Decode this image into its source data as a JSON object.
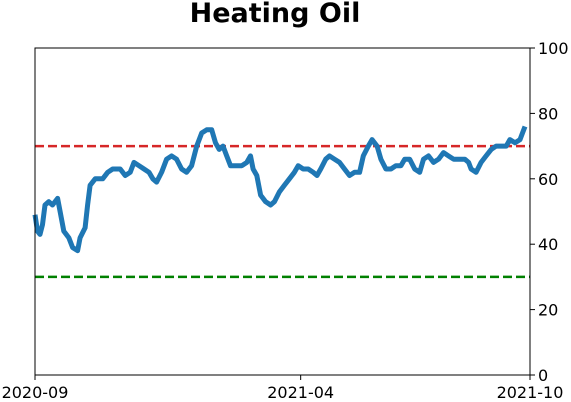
{
  "chart_data": {
    "type": "line",
    "title": "Heating Oil",
    "xlabel": "",
    "ylabel": "",
    "x_range": [
      "2020-09-01",
      "2021-10-01"
    ],
    "x_ticks": [
      {
        "date": "2020-09-01",
        "label": "2020-09"
      },
      {
        "date": "2021-04-01",
        "label": "2021-04"
      },
      {
        "date": "2021-10-01",
        "label": "2021-10"
      }
    ],
    "ylim": [
      0,
      100
    ],
    "y_ticks": [
      0,
      20,
      40,
      60,
      80,
      100
    ],
    "y_axis_side": "right",
    "grid": false,
    "legend": "none",
    "reference_lines": [
      {
        "y": 70,
        "color": "#d62728",
        "style": "dashed"
      },
      {
        "y": 30,
        "color": "#008000",
        "style": "dashed"
      }
    ],
    "series": [
      {
        "color": "#1f77b4",
        "points": [
          [
            "2020-09-01",
            49
          ],
          [
            "2020-09-03",
            44
          ],
          [
            "2020-09-05",
            43
          ],
          [
            "2020-09-07",
            46
          ],
          [
            "2020-09-09",
            52
          ],
          [
            "2020-09-12",
            53
          ],
          [
            "2020-09-15",
            52
          ],
          [
            "2020-09-19",
            54
          ],
          [
            "2020-09-21",
            50
          ],
          [
            "2020-09-24",
            44
          ],
          [
            "2020-09-28",
            42
          ],
          [
            "2020-10-01",
            39
          ],
          [
            "2020-10-05",
            38
          ],
          [
            "2020-10-07",
            42
          ],
          [
            "2020-10-11",
            45
          ],
          [
            "2020-10-13",
            52
          ],
          [
            "2020-10-15",
            58
          ],
          [
            "2020-10-19",
            60
          ],
          [
            "2020-10-25",
            60
          ],
          [
            "2020-10-29",
            62
          ],
          [
            "2020-11-02",
            63
          ],
          [
            "2020-11-08",
            63
          ],
          [
            "2020-11-12",
            61
          ],
          [
            "2020-11-16",
            62
          ],
          [
            "2020-11-19",
            65
          ],
          [
            "2020-11-23",
            64
          ],
          [
            "2020-11-27",
            63
          ],
          [
            "2020-12-01",
            62
          ],
          [
            "2020-12-04",
            60
          ],
          [
            "2020-12-07",
            59
          ],
          [
            "2020-12-11",
            62
          ],
          [
            "2020-12-15",
            66
          ],
          [
            "2020-12-19",
            67
          ],
          [
            "2020-12-23",
            66
          ],
          [
            "2020-12-27",
            63
          ],
          [
            "2020-12-31",
            62
          ],
          [
            "2021-01-04",
            64
          ],
          [
            "2021-01-08",
            70
          ],
          [
            "2021-01-12",
            74
          ],
          [
            "2021-01-16",
            75
          ],
          [
            "2021-01-20",
            75
          ],
          [
            "2021-01-23",
            71
          ],
          [
            "2021-01-26",
            69
          ],
          [
            "2021-01-29",
            70
          ],
          [
            "2021-02-01",
            67
          ],
          [
            "2021-02-04",
            64
          ],
          [
            "2021-02-08",
            64
          ],
          [
            "2021-02-13",
            64
          ],
          [
            "2021-02-17",
            65
          ],
          [
            "2021-02-20",
            67
          ],
          [
            "2021-02-22",
            63
          ],
          [
            "2021-02-25",
            61
          ],
          [
            "2021-02-28",
            55
          ],
          [
            "2021-03-04",
            53
          ],
          [
            "2021-03-08",
            52
          ],
          [
            "2021-03-11",
            53
          ],
          [
            "2021-03-15",
            56
          ],
          [
            "2021-03-19",
            58
          ],
          [
            "2021-03-23",
            60
          ],
          [
            "2021-03-27",
            62
          ],
          [
            "2021-03-30",
            64
          ],
          [
            "2021-04-03",
            63
          ],
          [
            "2021-04-07",
            63
          ],
          [
            "2021-04-11",
            62
          ],
          [
            "2021-04-14",
            61
          ],
          [
            "2021-04-17",
            63
          ],
          [
            "2021-04-21",
            66
          ],
          [
            "2021-04-24",
            67
          ],
          [
            "2021-04-28",
            66
          ],
          [
            "2021-05-02",
            65
          ],
          [
            "2021-05-06",
            63
          ],
          [
            "2021-05-10",
            61
          ],
          [
            "2021-05-14",
            62
          ],
          [
            "2021-05-18",
            62
          ],
          [
            "2021-05-21",
            67
          ],
          [
            "2021-05-25",
            70
          ],
          [
            "2021-05-28",
            72
          ],
          [
            "2021-06-01",
            70
          ],
          [
            "2021-06-04",
            66
          ],
          [
            "2021-06-08",
            63
          ],
          [
            "2021-06-12",
            63
          ],
          [
            "2021-06-16",
            64
          ],
          [
            "2021-06-20",
            64
          ],
          [
            "2021-06-23",
            66
          ],
          [
            "2021-06-27",
            66
          ],
          [
            "2021-07-01",
            63
          ],
          [
            "2021-07-05",
            62
          ],
          [
            "2021-07-08",
            66
          ],
          [
            "2021-07-12",
            67
          ],
          [
            "2021-07-16",
            65
          ],
          [
            "2021-07-20",
            66
          ],
          [
            "2021-07-24",
            68
          ],
          [
            "2021-07-28",
            67
          ],
          [
            "2021-08-01",
            66
          ],
          [
            "2021-08-05",
            66
          ],
          [
            "2021-08-10",
            66
          ],
          [
            "2021-08-13",
            65
          ],
          [
            "2021-08-15",
            63
          ],
          [
            "2021-08-19",
            62
          ],
          [
            "2021-08-23",
            65
          ],
          [
            "2021-08-27",
            67
          ],
          [
            "2021-08-31",
            69
          ],
          [
            "2021-09-04",
            70
          ],
          [
            "2021-09-08",
            70
          ],
          [
            "2021-09-12",
            70
          ],
          [
            "2021-09-15",
            72
          ],
          [
            "2021-09-19",
            71
          ],
          [
            "2021-09-23",
            72
          ],
          [
            "2021-09-25",
            74
          ],
          [
            "2021-09-27",
            76
          ]
        ]
      }
    ]
  }
}
